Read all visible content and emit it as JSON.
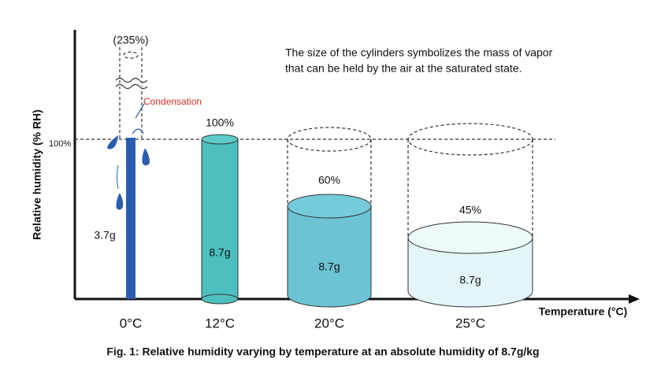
{
  "figure": {
    "note": [
      "The size of the cylinders symbolizes the mass of vapor",
      "that can be held by the air at the saturated state."
    ],
    "y_axis_label": "Relative humidity (% RH)",
    "y_tick": "100%",
    "x_axis_label": "Temperature (°C)",
    "condensation_label": "Condensation",
    "caption": "Fig. 1: Relative humidity varying by temperature at an absolute humidity of 8.7g/kg",
    "cylinders": [
      {
        "temperature": "0°C",
        "rh": "(235%)",
        "mass": "3.7g"
      },
      {
        "temperature": "12°C",
        "rh": "100%",
        "mass": "8.7g"
      },
      {
        "temperature": "20°C",
        "rh": "60%",
        "mass": "8.7g"
      },
      {
        "temperature": "25°C",
        "rh": "45%",
        "mass": "8.7g"
      }
    ]
  }
}
